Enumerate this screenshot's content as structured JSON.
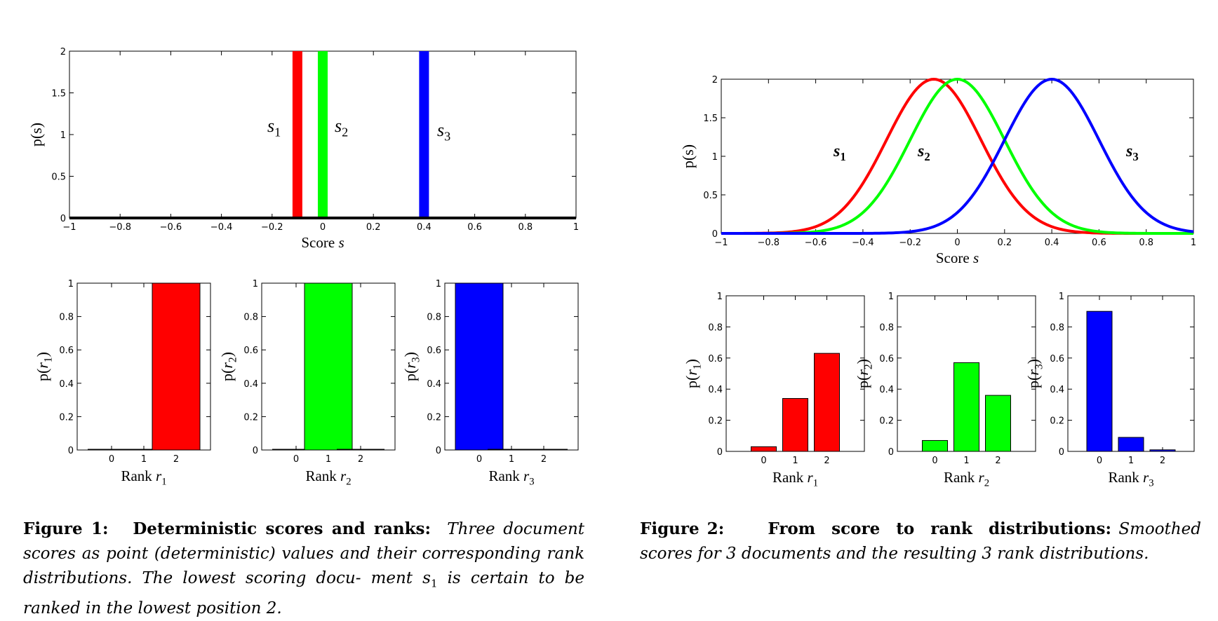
{
  "figure1": {
    "caption": {
      "label": "Figure 1:",
      "title": "Deterministic scores and ranks:",
      "text_line1": "Three",
      "text_line2": "document scores as point (deterministic) values and their",
      "text_line3": "corresponding rank distributions. The lowest scoring docu-",
      "text_line4": "ment s",
      "text_line4_sub": "1",
      "text_line4_end": " is certain to be ranked in the lowest position 2."
    }
  },
  "figure2": {
    "caption": {
      "label": "Figure 2:",
      "title": "From score to rank distributions:",
      "text_line1": "Smoothed scores for 3 documents and the resulting 3 rank",
      "text_line2": "distributions."
    }
  },
  "colors": {
    "s1": "#ff0000",
    "s2": "#00ff00",
    "s3": "#0000ff"
  },
  "chart_data": [
    {
      "id": "fig1-score",
      "type": "bar",
      "xlabel": "Score s",
      "ylabel": "p(s)",
      "xlim": [
        -1,
        1
      ],
      "ylim": [
        0,
        2
      ],
      "xticks": [
        "−1",
        "−0.8",
        "−0.6",
        "−0.4",
        "−0.2",
        "0",
        "0.2",
        "0.4",
        "0.6",
        "0.8",
        "1"
      ],
      "yticks": [
        "0",
        "0.5",
        "1",
        "1.5",
        "2"
      ],
      "series": [
        {
          "name": "s1",
          "x": -0.1,
          "value": 2
        },
        {
          "name": "s2",
          "x": 0.0,
          "value": 2
        },
        {
          "name": "s3",
          "x": 0.4,
          "value": 2
        }
      ]
    },
    {
      "id": "fig1-r1",
      "type": "bar",
      "xlabel": "Rank r1",
      "ylabel": "p(r1)",
      "categories": [
        "0",
        "1",
        "2"
      ],
      "values": [
        0,
        0,
        1
      ],
      "ylim": [
        0,
        1
      ],
      "yticks": [
        "0",
        "0.2",
        "0.4",
        "0.6",
        "0.8",
        "1"
      ]
    },
    {
      "id": "fig1-r2",
      "type": "bar",
      "xlabel": "Rank r2",
      "ylabel": "p(r2)",
      "categories": [
        "0",
        "1",
        "2"
      ],
      "values": [
        0,
        1,
        0
      ],
      "ylim": [
        0,
        1
      ],
      "yticks": [
        "0",
        "0.2",
        "0.4",
        "0.6",
        "0.8",
        "1"
      ]
    },
    {
      "id": "fig1-r3",
      "type": "bar",
      "xlabel": "Rank r3",
      "ylabel": "p(r3)",
      "categories": [
        "0",
        "1",
        "2"
      ],
      "values": [
        1,
        0,
        0
      ],
      "ylim": [
        0,
        1
      ],
      "yticks": [
        "0",
        "0.2",
        "0.4",
        "0.6",
        "0.8",
        "1"
      ]
    },
    {
      "id": "fig2-score",
      "type": "line",
      "xlabel": "Score s",
      "ylabel": "p(s)",
      "xlim": [
        -1,
        1
      ],
      "ylim": [
        0,
        2
      ],
      "xticks": [
        "−1",
        "−0.8",
        "−0.6",
        "−0.4",
        "−0.2",
        "0",
        "0.2",
        "0.4",
        "0.6",
        "0.8",
        "1"
      ],
      "yticks": [
        "0",
        "0.5",
        "1",
        "1.5",
        "2"
      ],
      "series": [
        {
          "name": "s1",
          "mean": -0.1,
          "sd": 0.2,
          "peak": 2
        },
        {
          "name": "s2",
          "mean": 0.0,
          "sd": 0.2,
          "peak": 2
        },
        {
          "name": "s3",
          "mean": 0.4,
          "sd": 0.2,
          "peak": 2
        }
      ]
    },
    {
      "id": "fig2-r1",
      "type": "bar",
      "xlabel": "Rank r1",
      "ylabel": "p(r1)",
      "categories": [
        "0",
        "1",
        "2"
      ],
      "values": [
        0.03,
        0.34,
        0.63
      ],
      "ylim": [
        0,
        1
      ],
      "yticks": [
        "0",
        "0.2",
        "0.4",
        "0.6",
        "0.8",
        "1"
      ]
    },
    {
      "id": "fig2-r2",
      "type": "bar",
      "xlabel": "Rank r2",
      "ylabel": "p(r2)",
      "categories": [
        "0",
        "1",
        "2"
      ],
      "values": [
        0.07,
        0.57,
        0.36
      ],
      "ylim": [
        0,
        1
      ],
      "yticks": [
        "0",
        "0.2",
        "0.4",
        "0.6",
        "0.8",
        "1"
      ]
    },
    {
      "id": "fig2-r3",
      "type": "bar",
      "xlabel": "Rank r3",
      "ylabel": "p(r3)",
      "categories": [
        "0",
        "1",
        "2"
      ],
      "values": [
        0.9,
        0.09,
        0.01
      ],
      "ylim": [
        0,
        1
      ],
      "yticks": [
        "0",
        "0.2",
        "0.4",
        "0.6",
        "0.8",
        "1"
      ]
    }
  ]
}
